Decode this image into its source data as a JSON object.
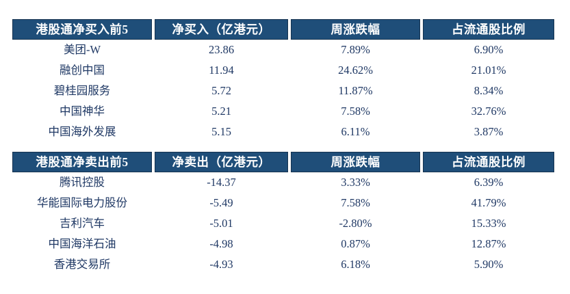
{
  "page": {
    "background": "#FFFFFF"
  },
  "theme": {
    "header_bg": "#1F4E79",
    "header_text": "#FFFFFF",
    "body_text": "#1F3864",
    "header_border": "#16334E"
  },
  "chart_data": [
    {
      "type": "table",
      "title": "港股通净买入前5",
      "columns": [
        "港股通净买入前5",
        "净买入（亿港元）",
        "周涨跌幅",
        "占流通股比例"
      ],
      "rows": [
        [
          "美团-W",
          "23.86",
          "7.89%",
          "6.90%"
        ],
        [
          "融创中国",
          "11.94",
          "24.62%",
          "21.01%"
        ],
        [
          "碧桂园服务",
          "5.72",
          "11.87%",
          "8.34%"
        ],
        [
          "中国神华",
          "5.21",
          "7.58%",
          "32.76%"
        ],
        [
          "中国海外发展",
          "5.15",
          "6.11%",
          "3.87%"
        ]
      ]
    },
    {
      "type": "table",
      "title": "港股通净卖出前5",
      "columns": [
        "港股通净卖出前5",
        "净卖出（亿港元）",
        "周涨跌幅",
        "占流通股比例"
      ],
      "rows": [
        [
          "腾讯控股",
          "-14.37",
          "3.33%",
          "6.39%"
        ],
        [
          "华能国际电力股份",
          "-5.49",
          "7.58%",
          "41.79%"
        ],
        [
          "吉利汽车",
          "-5.01",
          "-2.80%",
          "15.33%"
        ],
        [
          "中国海洋石油",
          "-4.98",
          "0.87%",
          "12.87%"
        ],
        [
          "香港交易所",
          "-4.93",
          "6.18%",
          "5.90%"
        ]
      ]
    }
  ]
}
